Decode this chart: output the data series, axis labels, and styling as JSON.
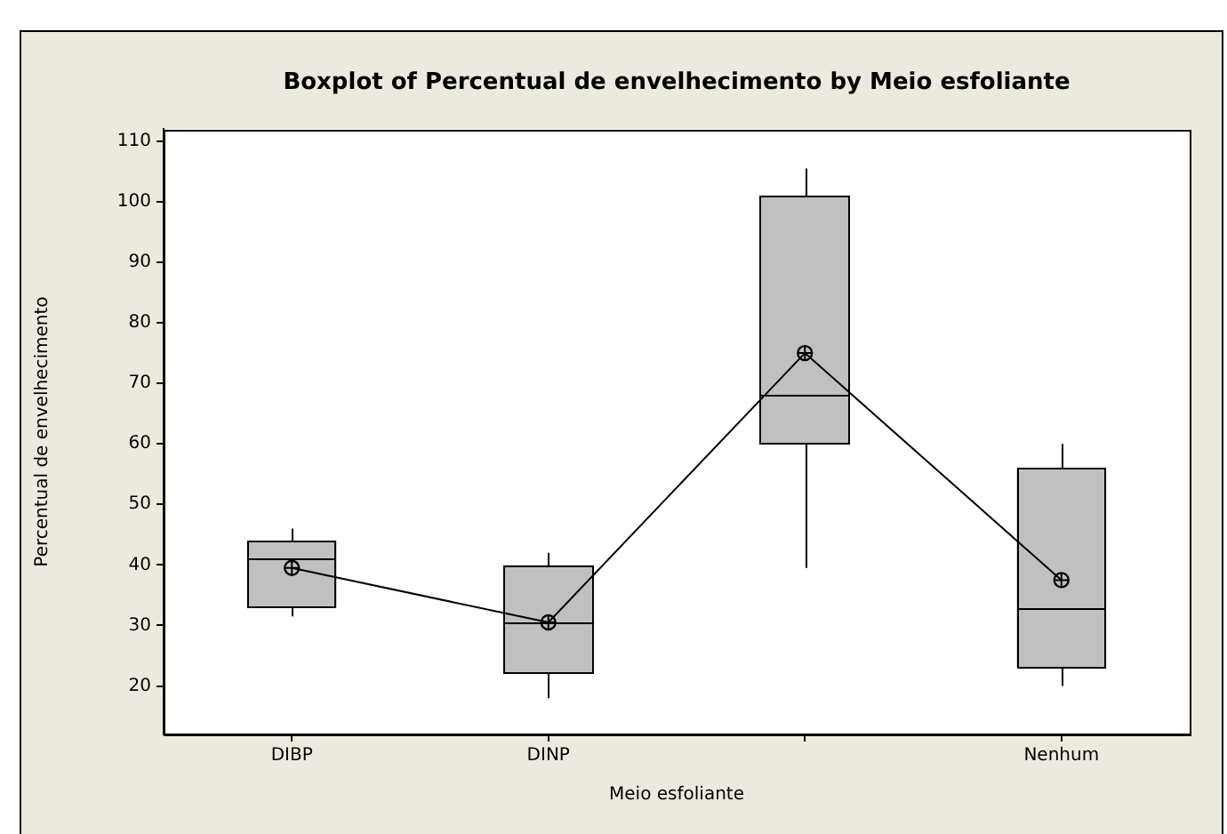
{
  "chart_data": {
    "type": "box",
    "title": "Boxplot of Percentual de envelhecimento by Meio esfoliante",
    "xlabel": "Meio esfoliante",
    "ylabel": "Percentual de envelhecimento",
    "categories": [
      "DIBP",
      "DINP",
      null,
      "Nenhum"
    ],
    "ylim": [
      12,
      112
    ],
    "yticks": [
      20,
      30,
      40,
      50,
      60,
      70,
      80,
      90,
      100,
      110
    ],
    "grid": false,
    "legend": false,
    "series": [
      {
        "type": "box",
        "color": "#c0c0c0",
        "boxes": [
          {
            "low": 31.5,
            "q1": 33,
            "median": 41,
            "q3": 44,
            "high": 46
          },
          {
            "low": 18,
            "q1": 22,
            "median": 30.5,
            "q3": 40,
            "high": 42
          },
          {
            "low": 39.5,
            "q1": 60,
            "median": 68,
            "q3": 101,
            "high": 105.5
          },
          {
            "low": 20,
            "q1": 23,
            "median": 33,
            "q3": 56,
            "high": 60
          }
        ]
      },
      {
        "type": "line",
        "color": "#000000",
        "values": [
          39.5,
          30.5,
          75,
          37.5
        ],
        "marker": "circle"
      }
    ]
  }
}
